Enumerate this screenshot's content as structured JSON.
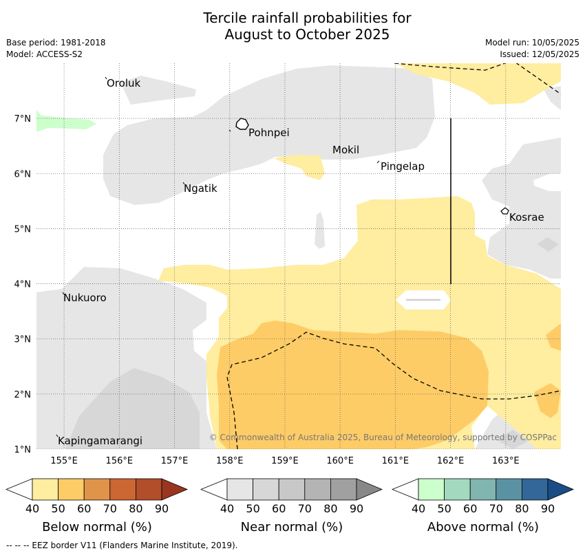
{
  "title_line1": "Tercile rainfall probabilities for",
  "title_line2": "August to October 2025",
  "base_period": "Base period: 1981-2018",
  "model": "Model: ACCESS-S2",
  "model_run": "Model run: 10/05/2025",
  "issued": "Issued: 12/05/2025",
  "copyright": "© Commonwealth of Australia 2025, Bureau of Meteorology, supported by COSPPac",
  "footnote": "-- -- -- EEZ border V11 (Flanders Marine Institute, 2019).",
  "map": {
    "lon_range": [
      154.5,
      164
    ],
    "lat_range": [
      1,
      8
    ],
    "lon_ticks": [
      "155°E",
      "156°E",
      "157°E",
      "158°E",
      "159°E",
      "160°E",
      "161°E",
      "162°E",
      "163°E"
    ],
    "lat_ticks": [
      "1°N",
      "2°N",
      "3°N",
      "4°N",
      "5°N",
      "6°N",
      "7°N"
    ],
    "places": [
      {
        "name": "Oroluk"
      },
      {
        "name": "Pohnpei"
      },
      {
        "name": "Mokil"
      },
      {
        "name": "Pingelap"
      },
      {
        "name": "Ngatik"
      },
      {
        "name": "Kosrae"
      },
      {
        "name": "Nukuoro"
      },
      {
        "name": "Kapingamarangi"
      }
    ]
  },
  "colorbars": [
    {
      "label": "Below normal (%)",
      "ticks": [
        "40",
        "50",
        "60",
        "70",
        "80",
        "90"
      ],
      "colors": [
        "#ffeda0",
        "#fecc66",
        "#e0944a",
        "#cc6633",
        "#b04f2a",
        "#9a3520"
      ]
    },
    {
      "label": "Near normal (%)",
      "ticks": [
        "40",
        "50",
        "60",
        "70",
        "80",
        "90"
      ],
      "colors": [
        "#e6e6e6",
        "#d7d7d7",
        "#c8c8c8",
        "#b4b4b4",
        "#a0a0a0",
        "#888888"
      ]
    },
    {
      "label": "Above normal (%)",
      "ticks": [
        "40",
        "50",
        "60",
        "70",
        "80",
        "90"
      ],
      "colors": [
        "#ccffcc",
        "#a3d9bf",
        "#80b5b0",
        "#5a92a3",
        "#336699",
        "#1a4d85"
      ]
    }
  ]
}
